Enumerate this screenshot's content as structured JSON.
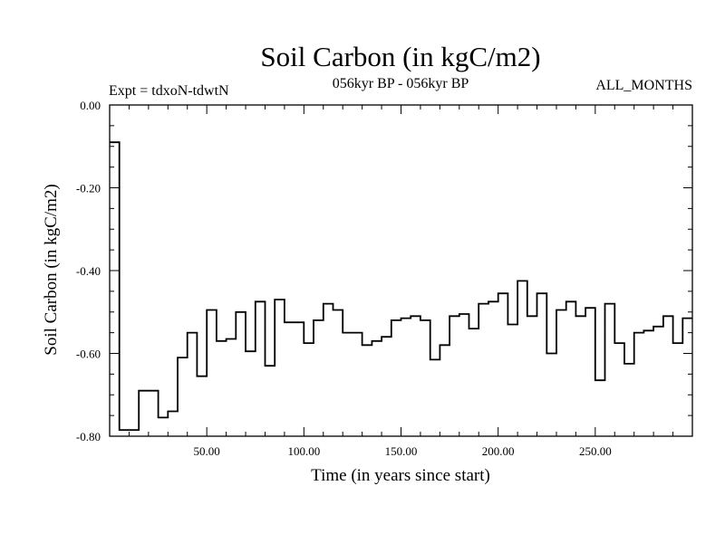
{
  "chart_data": {
    "type": "line",
    "step": true,
    "title": "Soil Carbon (in kgC/m2)",
    "subtitle": "056kyr BP - 056kyr BP",
    "left_label": "Expt = tdxoN-tdwtN",
    "right_label": "ALL_MONTHS",
    "xlabel": "Time (in years since start)",
    "ylabel": "Soil Carbon (in kgC/m2)",
    "xlim": [
      0,
      300
    ],
    "ylim": [
      -0.8,
      0.0
    ],
    "x_ticks": [
      50,
      100,
      150,
      200,
      250
    ],
    "x_tick_labels": [
      "50.00",
      "100.00",
      "150.00",
      "200.00",
      "250.00"
    ],
    "y_ticks": [
      0.0,
      -0.2,
      -0.4,
      -0.6,
      -0.8
    ],
    "y_tick_labels": [
      "0.00",
      "-0.20",
      "-0.40",
      "-0.60",
      "-0.80"
    ],
    "grid": false,
    "series": [
      {
        "x": [
          0,
          5,
          15,
          25,
          30,
          35,
          40,
          45,
          50,
          55,
          60,
          65,
          70,
          75,
          80,
          85,
          90,
          95,
          100,
          105,
          110,
          115,
          120,
          125,
          130,
          135,
          140,
          145,
          150,
          155,
          160,
          165,
          170,
          175,
          180,
          185,
          190,
          195,
          200,
          205,
          210,
          215,
          220,
          225,
          230,
          235,
          240,
          245,
          250,
          255,
          260,
          265,
          270,
          275,
          280,
          285,
          290,
          295
        ],
        "values": [
          -0.09,
          -0.785,
          -0.69,
          -0.755,
          -0.74,
          -0.61,
          -0.55,
          -0.655,
          -0.495,
          -0.57,
          -0.565,
          -0.5,
          -0.595,
          -0.475,
          -0.63,
          -0.47,
          -0.525,
          -0.525,
          -0.575,
          -0.52,
          -0.48,
          -0.495,
          -0.55,
          -0.55,
          -0.58,
          -0.57,
          -0.56,
          -0.52,
          -0.515,
          -0.51,
          -0.52,
          -0.615,
          -0.58,
          -0.51,
          -0.505,
          -0.54,
          -0.48,
          -0.475,
          -0.455,
          -0.53,
          -0.425,
          -0.51,
          -0.455,
          -0.6,
          -0.495,
          -0.475,
          -0.51,
          -0.49,
          -0.665,
          -0.48,
          -0.575,
          -0.625,
          -0.55,
          -0.545,
          -0.535,
          -0.51,
          -0.575,
          -0.515
        ]
      }
    ]
  }
}
